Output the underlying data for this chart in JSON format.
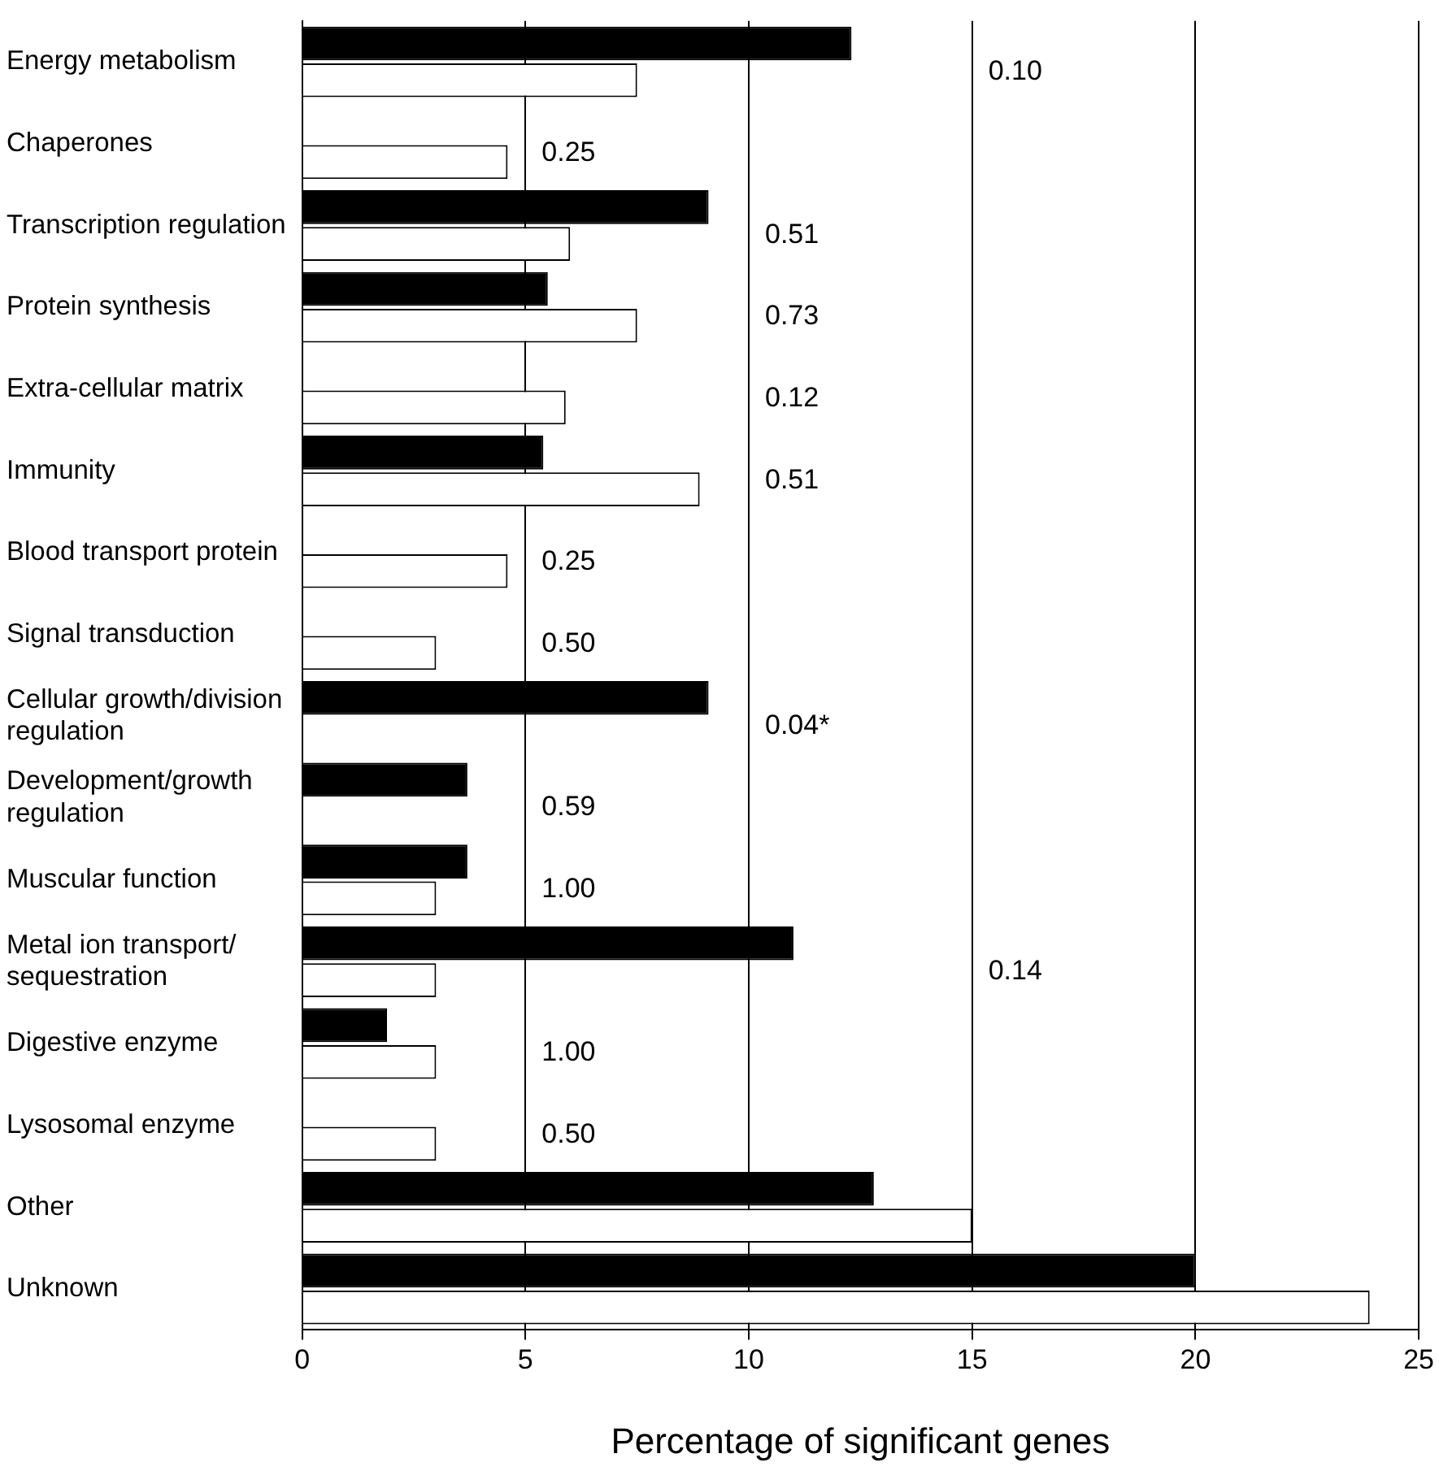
{
  "chart_data": {
    "type": "bar",
    "orientation": "horizontal",
    "xlabel": "Percentage of significant genes",
    "categories": [
      "Energy metabolism",
      "Chaperones",
      "Transcription regulation",
      "Protein synthesis",
      "Extra-cellular matrix",
      "Immunity",
      "Blood transport protein",
      "Signal transduction",
      "Cellular growth/division\nregulation",
      "Development/growth\nregulation",
      "Muscular function",
      "Metal ion transport/\nsequestration",
      "Digestive enzyme",
      "Lysosomal enzyme",
      "Other",
      "Unknown"
    ],
    "series": [
      {
        "color": "#000000",
        "values": [
          12.3,
          null,
          9.1,
          5.5,
          null,
          5.4,
          null,
          null,
          9.1,
          3.7,
          3.7,
          11.0,
          1.9,
          null,
          12.8,
          20.0
        ]
      },
      {
        "color": "#ffffff",
        "values": [
          7.5,
          4.6,
          6.0,
          7.5,
          5.9,
          8.9,
          4.6,
          3.0,
          null,
          null,
          3.0,
          3.0,
          3.0,
          3.0,
          15.0,
          23.9
        ]
      }
    ],
    "xlim": [
      0,
      25
    ],
    "xticks": [
      0,
      5,
      10,
      15,
      20,
      25
    ],
    "grid": "x",
    "legend": false,
    "annotations": [
      "0.10",
      "0.25",
      "0.51",
      "0.73",
      "0.12",
      "0.51",
      "0.25",
      "0.50",
      "0.04*",
      "0.59",
      "1.00",
      "0.14",
      "1.00",
      "0.50"
    ]
  }
}
